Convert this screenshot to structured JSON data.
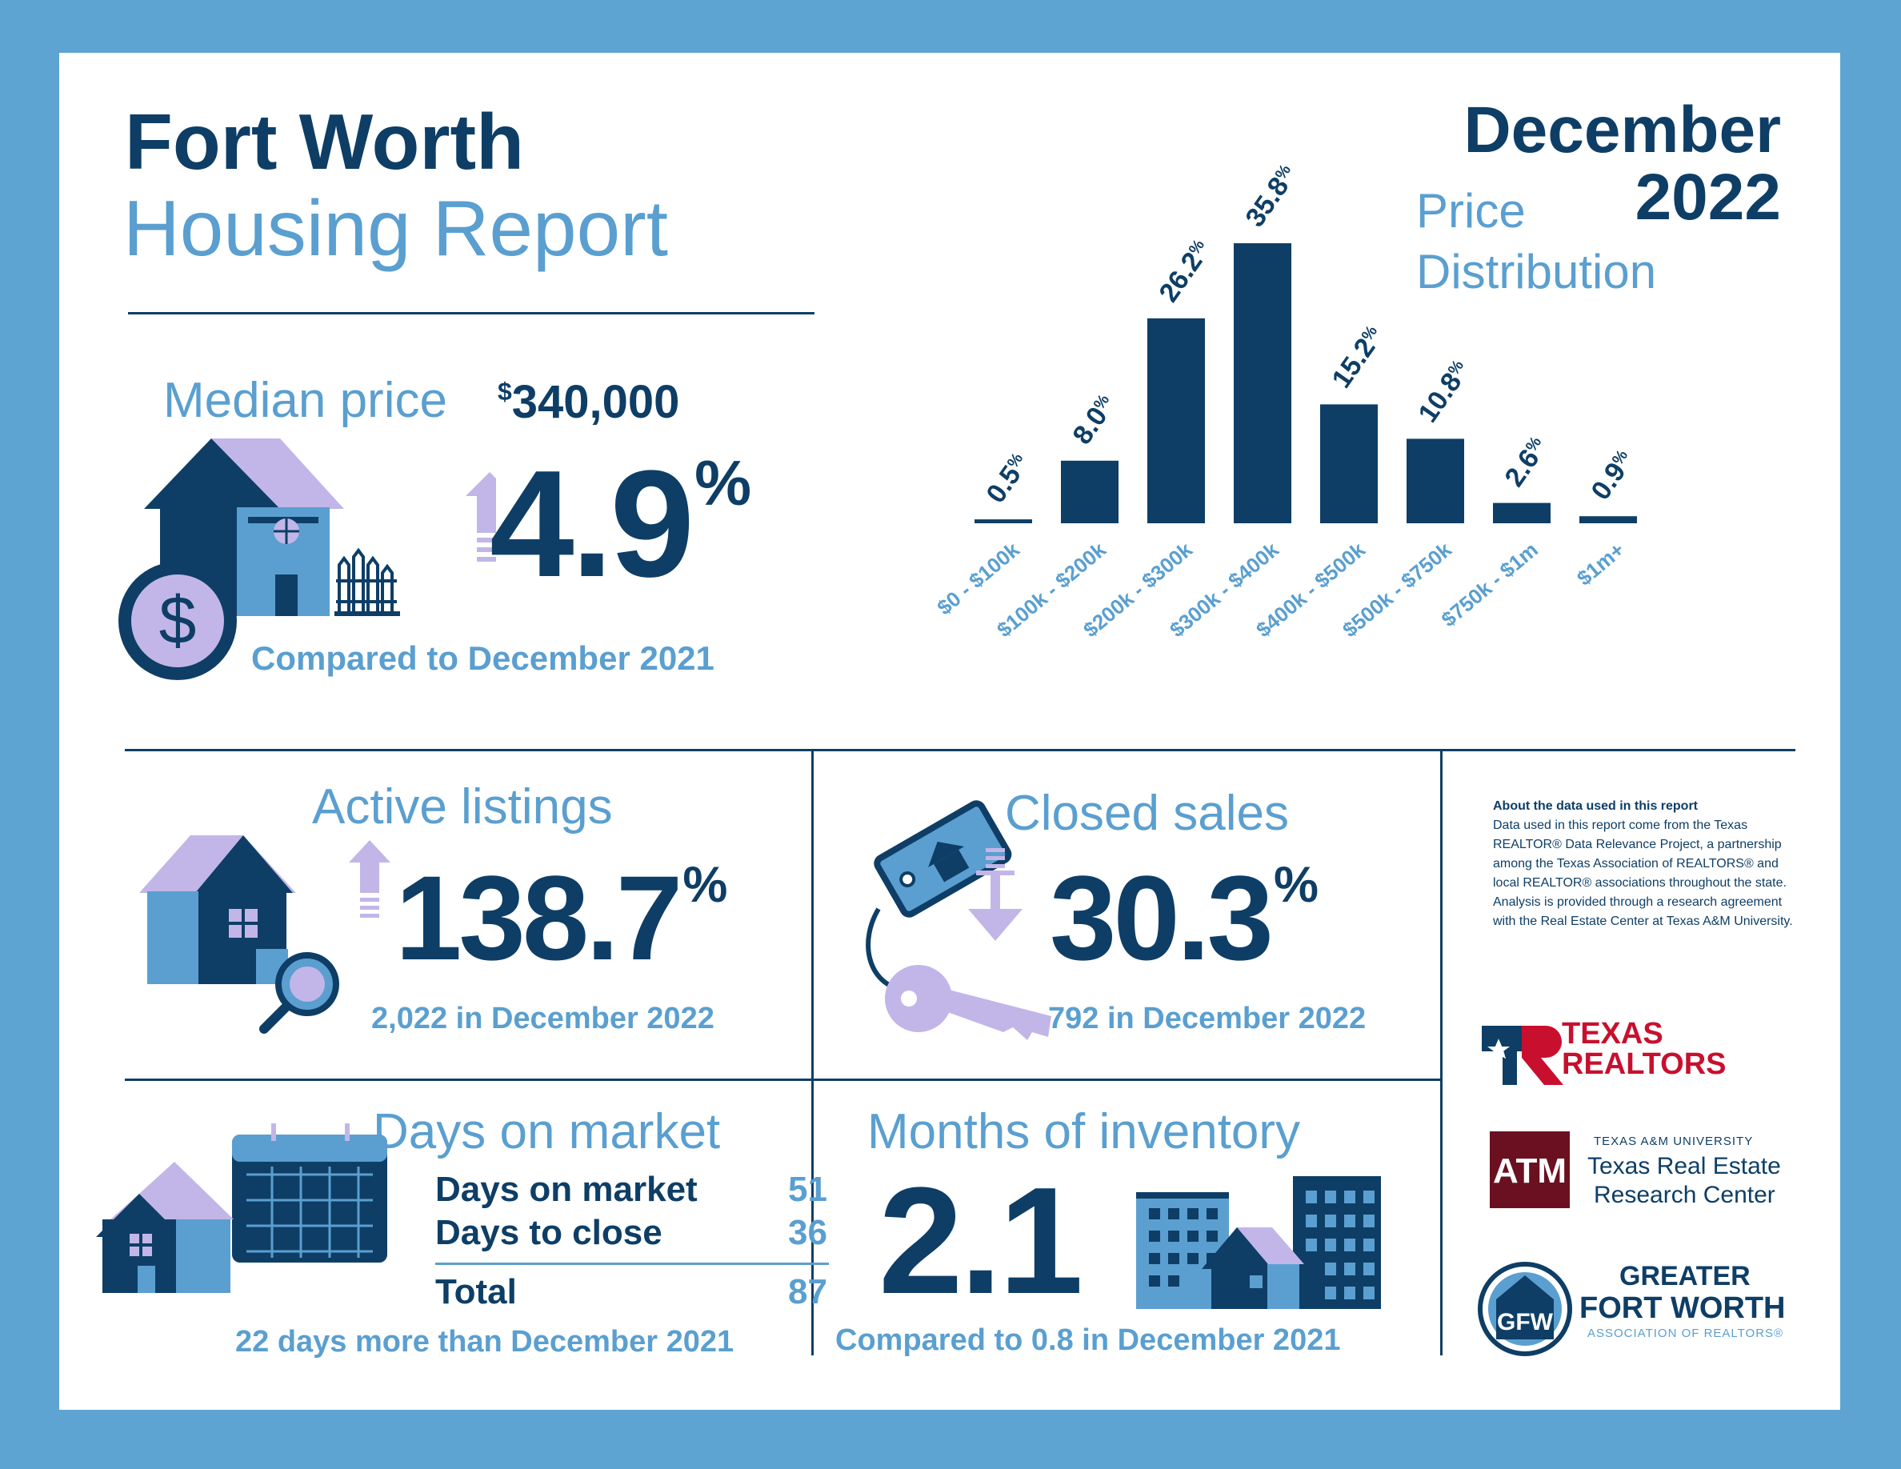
{
  "header": {
    "title_line1": "Fort Worth",
    "title_line2": "Housing Report",
    "month": "December",
    "year": "2022",
    "chart_title_line1": "Price",
    "chart_title_line2": "Distribution"
  },
  "median_price": {
    "label": "Median price",
    "dollar": "$",
    "value": "340,000",
    "change": "4.9",
    "pct": "%",
    "direction": "up",
    "comparison": "Compared to December 2021"
  },
  "active_listings": {
    "label": "Active listings",
    "change": "138.7",
    "pct": "%",
    "direction": "up",
    "detail": "2,022 in December 2022"
  },
  "closed_sales": {
    "label": "Closed sales",
    "change": "30.3",
    "pct": "%",
    "direction": "down",
    "detail": "792 in December 2022"
  },
  "days_on_market": {
    "label": "Days on market",
    "rows": [
      {
        "name": "Days on market",
        "value": "51"
      },
      {
        "name": "Days to close",
        "value": "36"
      }
    ],
    "total_label": "Total",
    "total_value": "87",
    "comparison": "22 days more than December 2021"
  },
  "months_inventory": {
    "label": "Months of inventory",
    "value": "2.1",
    "comparison": "Compared to 0.8 in December 2021"
  },
  "about": {
    "heading": "About the data used in this report",
    "body": "Data used in this report come from the Texas REALTOR® Data Relevance Project, a partnership among the Texas Association of REALTORS® and local REALTOR® associations throughout the state. Analysis is provided through a research agreement with the Real Estate Center at Texas A&M University."
  },
  "logos": {
    "texas_realtors_line1": "TEXAS",
    "texas_realtors_line2": "REALTORS",
    "tamu_small": "TEXAS A&M UNIVERSITY",
    "tamu_line1": "Texas Real Estate",
    "tamu_line2": "Research Center",
    "gfw_line1": "GREATER",
    "gfw_line2": "FORT WORTH",
    "gfw_line3": "ASSOCIATION OF REALTORS®"
  },
  "colors": {
    "navy": "#0e3e66",
    "light_blue": "#5a9fd0",
    "lavender": "#c2b6e8",
    "frame": "#5ea4d2"
  },
  "chart_data": {
    "type": "bar",
    "title": "Price Distribution",
    "categories": [
      "$0 - $100k",
      "$100k - $200k",
      "$200k - $300k",
      "$300k - $400k",
      "$400k - $500k",
      "$500k - $750k",
      "$750k - $1m",
      "$1m+"
    ],
    "values": [
      0.5,
      8.0,
      26.2,
      35.8,
      15.2,
      10.8,
      2.6,
      0.9
    ],
    "value_labels": [
      "0.5",
      "8.0",
      "26.2",
      "35.8",
      "15.2",
      "10.8",
      "2.6",
      "0.9"
    ],
    "unit": "%",
    "ylim": [
      0,
      35.8
    ],
    "grid": false
  }
}
